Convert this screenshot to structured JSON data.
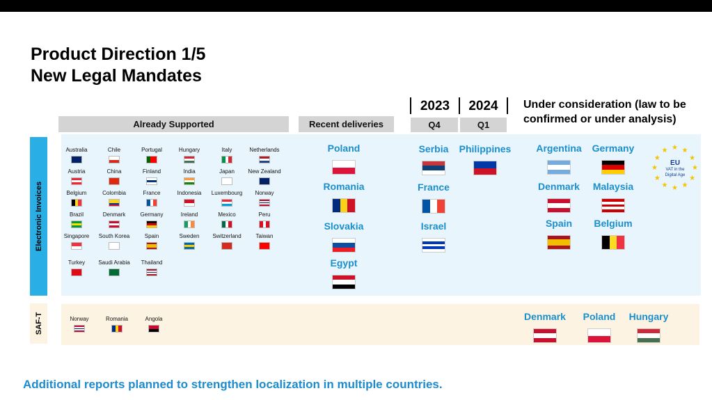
{
  "title": {
    "line1": "Product Direction 1/5",
    "line2": "New Legal Mandates"
  },
  "headers": {
    "already_supported": "Already Supported",
    "recent_deliveries": "Recent deliveries",
    "year_2023": "2023",
    "year_2024": "2024",
    "q4": "Q4",
    "q1": "Q1",
    "under_consideration": "Under consideration (law to be confirmed or under analysis)"
  },
  "side_labels": {
    "electronic_invoices": "Electronic Invoices",
    "saf_t": "SAF-T"
  },
  "already_supported": [
    {
      "name": "Australia",
      "flag": "australia-flag"
    },
    {
      "name": "Chile",
      "flag": "chile-flag"
    },
    {
      "name": "Portugal",
      "flag": "portugal-flag"
    },
    {
      "name": "Hungary",
      "flag": "hungary-flag"
    },
    {
      "name": "Italy",
      "flag": "italy-flag"
    },
    {
      "name": "Netherlands",
      "flag": "netherlands-flag"
    },
    {
      "name": "Austria",
      "flag": "austria-flag"
    },
    {
      "name": "China",
      "flag": "china-flag"
    },
    {
      "name": "Finland",
      "flag": "finland-flag"
    },
    {
      "name": "India",
      "flag": "india-flag"
    },
    {
      "name": "Japan",
      "flag": "japan-flag"
    },
    {
      "name": "New Zealand",
      "flag": "new-zealand-flag"
    },
    {
      "name": "Belgium",
      "flag": "belgium-flag"
    },
    {
      "name": "Colombia",
      "flag": "colombia-flag"
    },
    {
      "name": "France",
      "flag": "france-flag"
    },
    {
      "name": "Indonesia",
      "flag": "indonesia-flag"
    },
    {
      "name": "Luxembourg",
      "flag": "luxembourg-flag"
    },
    {
      "name": "Norway",
      "flag": "norway-flag"
    },
    {
      "name": "Brazil",
      "flag": "brazil-flag"
    },
    {
      "name": "Denmark",
      "flag": "denmark-flag"
    },
    {
      "name": "Germany",
      "flag": "germany-flag"
    },
    {
      "name": "Ireland",
      "flag": "ireland-flag"
    },
    {
      "name": "Mexico",
      "flag": "mexico-flag"
    },
    {
      "name": "Peru",
      "flag": "peru-flag"
    },
    {
      "name": "Singapore",
      "flag": "singapore-flag"
    },
    {
      "name": "South Korea",
      "flag": "south-korea-flag"
    },
    {
      "name": "Spain",
      "flag": "spain-flag"
    },
    {
      "name": "Sweden",
      "flag": "sweden-flag"
    },
    {
      "name": "Switzerland",
      "flag": "switzerland-flag"
    },
    {
      "name": "Taiwan",
      "flag": "taiwan-flag"
    },
    {
      "name": "Turkey",
      "flag": "turkey-flag"
    },
    {
      "name": "Saudi Arabia",
      "flag": "saudi-arabia-flag"
    },
    {
      "name": "Thailand",
      "flag": "thailand-flag"
    }
  ],
  "recent_deliveries": [
    {
      "name": "Poland",
      "flag": "poland-flag"
    },
    {
      "name": "Romania",
      "flag": "romania-flag"
    },
    {
      "name": "Slovakia",
      "flag": "slovakia-flag"
    },
    {
      "name": "Egypt",
      "flag": "egypt-flag"
    }
  ],
  "q4_2023": [
    {
      "name": "Serbia",
      "flag": "serbia-flag"
    },
    {
      "name": "France",
      "flag": "france-flag"
    },
    {
      "name": "Israel",
      "flag": "israel-flag"
    }
  ],
  "q1_2024": [
    {
      "name": "Philippines",
      "flag": "philippines-flag"
    }
  ],
  "under_consideration": [
    {
      "name": "Argentina",
      "flag": "argentina-flag"
    },
    {
      "name": "Germany",
      "flag": "germany-flag"
    },
    {
      "name": "Denmark",
      "flag": "denmark-flag"
    },
    {
      "name": "Malaysia",
      "flag": "malaysia-flag"
    },
    {
      "name": "Spain",
      "flag": "spain-flag"
    },
    {
      "name": "Belgium",
      "flag": "belgium-flag"
    }
  ],
  "eu_badge": {
    "line1": "EU",
    "line2": "VAT in the",
    "line3": "Digital Age",
    "icon": "eu-stars-icon"
  },
  "saft_supported": [
    {
      "name": "Norway",
      "flag": "norway-flag"
    },
    {
      "name": "Romania",
      "flag": "romania-flag"
    },
    {
      "name": "Angola",
      "flag": "angola-flag"
    }
  ],
  "saft_consideration": [
    {
      "name": "Denmark",
      "flag": "denmark-flag"
    },
    {
      "name": "Poland",
      "flag": "poland-flag"
    },
    {
      "name": "Hungary",
      "flag": "hungary-flag"
    }
  ],
  "footer": "Additional reports planned to strengthen localization in multiple countries."
}
